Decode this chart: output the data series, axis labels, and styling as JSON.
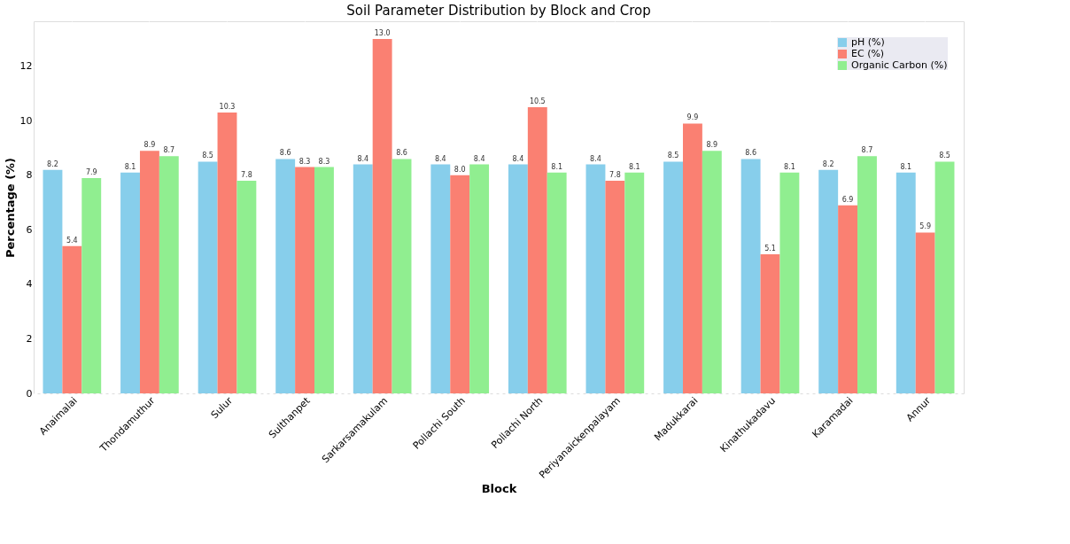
{
  "chart_data": {
    "type": "bar",
    "title": "Soil Parameter Distribution by Block and Crop",
    "xlabel": "Block",
    "ylabel": "Percentage (%)",
    "categories": [
      "Anaimalai",
      "Thondamuthur",
      "Sulur",
      "Sulthanpet",
      "Sarkarsamakulam",
      "Pollachi South",
      "Pollachi North",
      "Periyanaickenpalayam",
      "Madukkarai",
      "Kinathukadavu",
      "Karamadai",
      "Annur"
    ],
    "series": [
      {
        "name": "pH (%)",
        "color": "#87ceeb",
        "values": [
          8.2,
          8.1,
          8.5,
          8.6,
          8.4,
          8.4,
          8.4,
          8.4,
          8.5,
          8.6,
          8.2,
          8.1
        ],
        "value_labels": [
          "8.2",
          "8.1",
          "8.5",
          "8.6",
          "8.4",
          "8.4",
          "8.4",
          "8.4",
          "8.5",
          "8.6",
          "8.2",
          "8.1"
        ]
      },
      {
        "name": "EC (%)",
        "color": "#fa8072",
        "values": [
          5.4,
          8.9,
          10.3,
          8.3,
          13,
          8,
          10.5,
          7.8,
          9.9,
          5.1,
          6.9,
          5.9
        ],
        "value_labels": [
          "5.4",
          "8.9",
          "10.3",
          "8.3",
          "13.0",
          "8.0",
          "10.5",
          "7.8",
          "9.9",
          "5.1",
          "6.9",
          "5.9"
        ]
      },
      {
        "name": "Organic Carbon (%)",
        "color": "#90ee90",
        "values": [
          7.9,
          8.7,
          7.8,
          8.3,
          8.6,
          8.4,
          8.1,
          8.1,
          8.9,
          8.1,
          8.7,
          8.5
        ],
        "value_labels": [
          "7.9",
          "8.7",
          "7.8",
          "8.3",
          "8.6",
          "8.4",
          "8.1",
          "8.1",
          "8.9",
          "8.1",
          "8.7",
          "8.5"
        ]
      }
    ],
    "ylim": [
      0,
      13.65
    ],
    "yticks": [
      0,
      2,
      4,
      6,
      8,
      10,
      12
    ],
    "grid": true,
    "legend": "top right"
  }
}
